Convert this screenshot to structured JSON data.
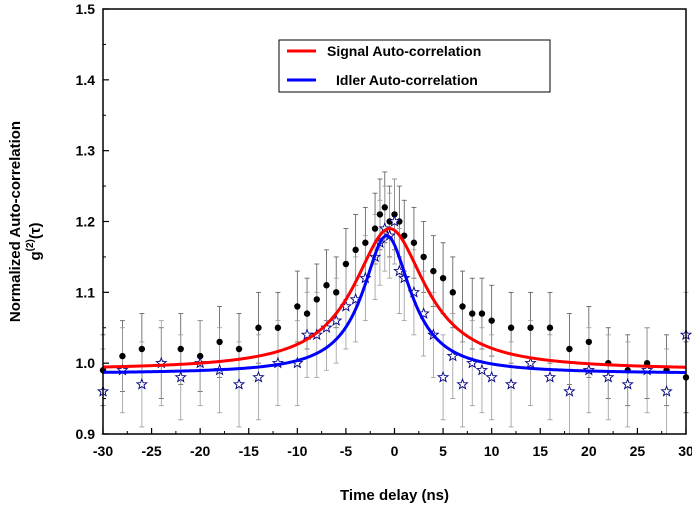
{
  "chart_data": {
    "type": "scatter",
    "xlabel": "Time delay (ns)",
    "ylabel_line1": "Normalized Auto-correlation",
    "ylabel_line2_base": "g",
    "ylabel_line2_sup": "(2)",
    "ylabel_line2_arg": "(τ)",
    "xlim": [
      -30,
      30
    ],
    "ylim": [
      0.9,
      1.5
    ],
    "xticks": [
      -30,
      -25,
      -20,
      -15,
      -10,
      -5,
      0,
      5,
      10,
      15,
      20,
      25,
      30
    ],
    "yticks": [
      0.9,
      1.0,
      1.1,
      1.2,
      1.3,
      1.4,
      1.5
    ],
    "ytick_labels": [
      "0.9",
      "1.0",
      "1.1",
      "1.2",
      "1.3",
      "1.4",
      "1.5"
    ],
    "legend_position": "top-right",
    "series": [
      {
        "name": "Signal Auto-correlation",
        "color": "#ff0000",
        "marker": "circle",
        "marker_color": "#000000",
        "fit": {
          "model": "lorentzian",
          "baseline": 0.99,
          "amplitude": 0.2,
          "center": -0.5,
          "halfwidth": 4.5
        },
        "points_x": [
          -30,
          -28,
          -26,
          -24,
          -22,
          -20,
          -18,
          -16,
          -14,
          -12,
          -10,
          -9,
          -8,
          -7,
          -6,
          -5,
          -4,
          -3,
          -2,
          -1.5,
          -1,
          -0.5,
          0,
          0.5,
          1,
          2,
          3,
          4,
          5,
          6,
          7,
          8,
          9,
          10,
          12,
          14,
          16,
          18,
          20,
          22,
          24,
          26,
          28,
          30
        ],
        "points_y": [
          0.99,
          1.01,
          1.02,
          1.0,
          1.02,
          1.01,
          1.03,
          1.02,
          1.05,
          1.05,
          1.08,
          1.07,
          1.09,
          1.11,
          1.1,
          1.14,
          1.16,
          1.17,
          1.19,
          1.21,
          1.22,
          1.2,
          1.21,
          1.2,
          1.18,
          1.17,
          1.15,
          1.13,
          1.12,
          1.1,
          1.08,
          1.07,
          1.07,
          1.06,
          1.05,
          1.05,
          1.05,
          1.02,
          1.03,
          1.0,
          0.99,
          1.0,
          0.99,
          0.98
        ],
        "error": 0.05
      },
      {
        "name": "Idler Auto-correlation",
        "color": "#0000ff",
        "marker": "star",
        "marker_color": "#000080",
        "fit": {
          "model": "lorentzian",
          "baseline": 0.985,
          "amplitude": 0.195,
          "center": -0.8,
          "halfwidth": 3.0
        },
        "points_x": [
          -30,
          -28,
          -26,
          -24,
          -22,
          -20,
          -18,
          -16,
          -14,
          -12,
          -10,
          -9,
          -8,
          -7,
          -6,
          -5,
          -4,
          -3,
          -2,
          -1.5,
          -1,
          -0.5,
          0,
          0.5,
          1,
          2,
          3,
          4,
          5,
          6,
          7,
          8,
          9,
          10,
          12,
          14,
          16,
          18,
          20,
          22,
          24,
          26,
          28,
          30
        ],
        "points_y": [
          0.96,
          0.99,
          0.97,
          1.0,
          0.98,
          1.0,
          0.99,
          0.97,
          0.98,
          1.0,
          1.0,
          1.04,
          1.04,
          1.05,
          1.06,
          1.08,
          1.09,
          1.12,
          1.15,
          1.17,
          1.19,
          1.18,
          1.2,
          1.13,
          1.12,
          1.1,
          1.07,
          1.04,
          0.98,
          1.01,
          0.97,
          1.0,
          0.99,
          0.98,
          0.97,
          1.0,
          0.98,
          0.96,
          0.99,
          0.98,
          0.97,
          0.99,
          0.96,
          1.04
        ],
        "error": 0.06
      }
    ]
  }
}
